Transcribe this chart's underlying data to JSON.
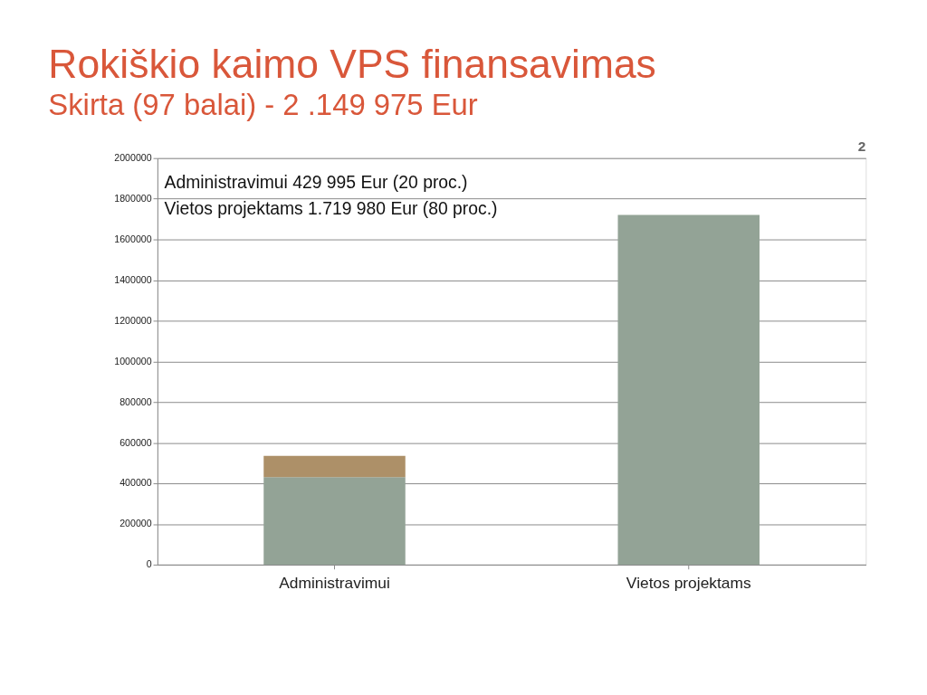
{
  "chart_data": {
    "type": "bar",
    "title": "Rokiškio kaimo VPS finansavimas",
    "subtitle": "Skirta (97 balai) - 2 .149 975 Eur",
    "categories": [
      "Administravimui",
      "Vietos projektams"
    ],
    "stacked": true,
    "series": [
      {
        "color": "#93a396",
        "values": [
          430000,
          1720000
        ]
      },
      {
        "color": "#ad9068",
        "values": [
          105000,
          null
        ]
      }
    ],
    "ylim": [
      0,
      2000000
    ],
    "yticks": [
      0,
      200000,
      400000,
      600000,
      800000,
      1000000,
      1200000,
      1400000,
      1600000,
      1800000,
      2000000
    ],
    "grid": "y",
    "legend": false,
    "annotations": [
      "Administravimui 429 995 Eur (20 proc.)",
      "Vietos projektams 1.719 980 Eur (80 proc.)",
      "2"
    ]
  }
}
